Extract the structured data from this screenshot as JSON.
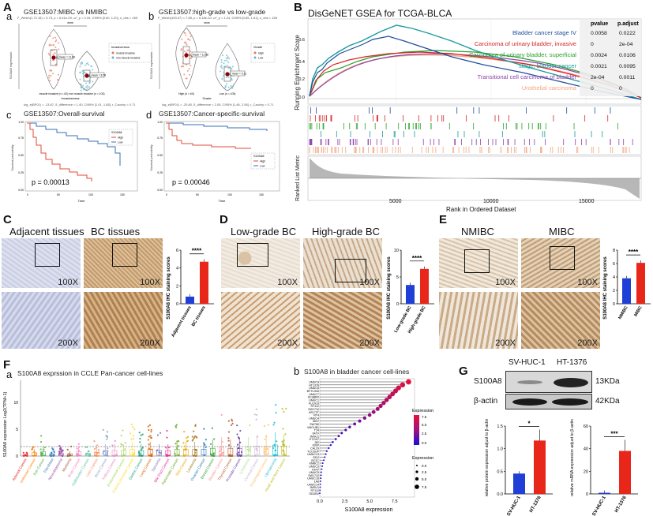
{
  "panelA": {
    "label": "A",
    "a": {
      "sub": "a",
      "title": "GSE13507:MIBC vs NMIBC",
      "stats": "F_Welch(1,72.15) = 5.73, p = 6.41e-09, ω²_p = 0.34, CI95% [0.60, 1.20], n_obs = 165",
      "ylabel": "S100A8 expression",
      "xlabel": "Invasiveness",
      "cats": [
        "muscle invasive (n = 62)",
        "non muscle invasive (n = 103)"
      ],
      "mean1": "μ_mean = 11.88",
      "mean2": "μ_mean = 8.78",
      "legend_title": "invasiveness",
      "legend_items": [
        "muscle invasive",
        "non muscle invasive"
      ],
      "footer": "log_e(BF01) = -13.87, δ_difference = 1.40, CI95% [1.01, 1.85], r_Cauchy = 0.71",
      "sig": "****"
    },
    "b": {
      "sub": "b",
      "title": "GSE13507:high-grade vs low-grade",
      "stats": "F_Welch(103.07) = 7.85, p = 6.18e-10, ω²_p = 1.24, CI95% [0.85, 1.61], n_obs = 165",
      "ylabel": "S100A8 expression",
      "xlabel": "Grade",
      "cats": [
        "High (n = 60)",
        "Low (n = 105)"
      ],
      "mean1": "μ_mean = 11.88",
      "mean2": "μ_mean = 9.11",
      "legend_title": "Grade",
      "legend_items": [
        "High",
        "Low"
      ],
      "footer": "log_e(BF01) = -20.80, δ_difference = 2.05, CI95% [1.48, 2.56], r_Cauchy = 0.71",
      "sig": "****"
    },
    "c": {
      "sub": "c",
      "title": "GSE13507:Overall-survival",
      "ylabel": "Survival probability",
      "xlabel": "Time",
      "pval": "p = 0.00013",
      "legend_title": "S100A8",
      "legend_items": [
        "High",
        "Low"
      ],
      "xticks": [
        "0",
        "50",
        "100",
        "150"
      ],
      "yticks": [
        "0.00",
        "0.25",
        "0.50",
        "0.75",
        "1.00"
      ]
    },
    "d": {
      "sub": "d",
      "title": "GSE13507:Cancer-specific-survival",
      "ylabel": "Survival probability",
      "xlabel": "Time",
      "pval": "p = 0.00046",
      "legend_title": "S100A8",
      "legend_items": [
        "High",
        "Low"
      ],
      "xticks": [
        "0",
        "50",
        "100",
        "150"
      ],
      "yticks": [
        "0.00",
        "0.25",
        "0.50",
        "0.75",
        "1.00"
      ]
    }
  },
  "panelB": {
    "label": "B",
    "title": "DisGeNET GSEA for TCGA-BLCA",
    "ylabel_top": "Running Enrichment Score",
    "ylabel_bottom": "Ranked List Metric",
    "xlabel": "Rank in Ordered Dataset",
    "xticks": [
      "5000",
      "10000",
      "15000"
    ],
    "table_headers": [
      "pvalue",
      "p.adjust"
    ],
    "terms": [
      {
        "name": "Bladder cancer stage IV",
        "color": "#1f4e9c",
        "pvalue": "0.0058",
        "padj": "0.0222"
      },
      {
        "name": "Carcinoma of urinary bladder, invasive",
        "color": "#d62728",
        "pvalue": "0",
        "padj": "2e-04"
      },
      {
        "name": "Carcinoma of urinary bladder, superficial",
        "color": "#2ca02c",
        "pvalue": "0.0024",
        "padj": "0.0106"
      },
      {
        "name": "stage, bladder cancer",
        "color": "#1a9a9a",
        "pvalue": "0.0021",
        "padj": "0.0095"
      },
      {
        "name": "Transitional cell carcinoma of bladder",
        "color": "#8e44ad",
        "pvalue": "2e-04",
        "padj": "0.0011"
      },
      {
        "name": "Urothelial carcinoma",
        "color": "#f4a582",
        "pvalue": "0",
        "padj": "0"
      }
    ]
  },
  "panelC": {
    "label": "C",
    "titles": [
      "Adjacent tissues",
      "BC tissues"
    ],
    "mag_low": "100X",
    "mag_high": "200X",
    "ylabel": "S100A8 IHC staining scores",
    "cats": [
      "Adjacent tissues",
      "BC tissues"
    ],
    "values": [
      0.8,
      4.7
    ],
    "ymax": 6,
    "yticks": [
      "0",
      "2",
      "4",
      "6"
    ],
    "sig": "****"
  },
  "panelD": {
    "label": "D",
    "titles": [
      "Low-grade BC",
      "High-grade BC"
    ],
    "mag_low": "100X",
    "mag_high": "200X",
    "ylabel": "S100A8 IHC staining scores",
    "cats": [
      "Low-grade BC",
      "High-grade BC"
    ],
    "values": [
      3.5,
      6.5
    ],
    "ymax": 10,
    "yticks": [
      "0",
      "5",
      "10"
    ],
    "sig": "****"
  },
  "panelE": {
    "label": "E",
    "titles": [
      "NMIBC",
      "MIBC"
    ],
    "mag_low": "100X",
    "mag_high": "200X",
    "ylabel": "S100A8 IHC staining scores",
    "cats": [
      "NMIBC",
      "MIBC"
    ],
    "values": [
      3.8,
      6.1
    ],
    "ymax": 8,
    "yticks": [
      "0",
      "2",
      "4",
      "6",
      "8"
    ],
    "sig": "****"
  },
  "panelF": {
    "label": "F",
    "a": {
      "sub": "a",
      "title": "S100A8 exprssion in CCLE Pan-cancer cell-lines",
      "ylabel": "S100A8 expression Log2(TPM+1)",
      "yticks": [
        "0",
        "5",
        "10"
      ],
      "cancers": [
        "Adrenal Cancer",
        "Unknown Cancer",
        "Eye Cancer",
        "Fibroblast",
        "Neuroblastoma",
        "Myeloma",
        "Brain Cancer",
        "Gallbladder Cancer",
        "Liver Cancer",
        "Bone Cancer",
        "Kidney Cancer",
        "Endometrial Cancer",
        "Colon/Colorectal Cancer",
        "Gastric Cancer",
        "Lung Cancer",
        "Sarcoma",
        "Bile Duct Cancer",
        "Pancreatic Cancer",
        "Skin Cancer",
        "Leukemia",
        "Ovarian Cancer",
        "Breast Cancer",
        "Bladder Cancer",
        "Thyroid Cancer",
        "Prostate Cancer",
        "Lymphoma",
        "Cervical Cancer",
        "Esophageal Cancer",
        "Liposarcoma",
        "Head and Neck Cancer"
      ]
    },
    "b": {
      "sub": "b",
      "title": "S100A8 in bladder cancer cell-lines",
      "xlabel": "S100A8 expression",
      "xticks": [
        "0.0",
        "2.5",
        "5.0",
        "7.5"
      ],
      "legend_title": "Expression",
      "legend_ticks": [
        "7.5",
        "5.0",
        "2.5",
        "0.0"
      ],
      "size_title": "Expression",
      "size_ticks": [
        "0.0",
        "2.5",
        "5.0",
        "7.5"
      ],
      "cells": [
        "UMUC9",
        "HT1376",
        "UMUC6",
        "BFTC905",
        "UMUC7",
        "SCaBER",
        "UMUC1",
        "KU1919",
        "RT112",
        "SW1710",
        "HS172T",
        "RT4",
        "UMUC4",
        "5637",
        "SW780",
        "VMCUB1",
        "T24",
        "647V",
        "JMSU1",
        "HT1197",
        "J82",
        "639V",
        "CAL29",
        "TCCSUP",
        "UMUC13",
        "253J",
        "BC3C",
        "KMBC2",
        "UMUC3",
        "KK47",
        "UMUC5",
        "SW1710",
        "UMUC16",
        "1A6",
        "UMUC14",
        "JMSU1",
        "RT112",
        "253JBV"
      ],
      "values": [
        8.9,
        8.3,
        7.9,
        7.6,
        7.3,
        7.0,
        6.7,
        6.4,
        6.1,
        5.8,
        5.4,
        5.0,
        4.5,
        4.0,
        3.5,
        3.0,
        2.6,
        2.2,
        1.9,
        1.6,
        1.3,
        1.1,
        0.9,
        0.7,
        0.6,
        0.5,
        0.4,
        0.3,
        0.25,
        0.2,
        0.15,
        0.12,
        0.1,
        0.08,
        0.06,
        0.04,
        0.02,
        0.0
      ]
    }
  },
  "panelG": {
    "label": "G",
    "cell_lines": [
      "SV-HUC-1",
      "HT-1376"
    ],
    "blot1_label": "S100A8",
    "blot1_kda": "13KDa",
    "blot2_label": "β-actin",
    "blot2_kda": "42KDa",
    "protein": {
      "ylabel": "relative protein expression adjust to β-actin",
      "values": [
        0.45,
        1.18
      ],
      "ymax": 1.5,
      "yticks": [
        "0.0",
        "0.5",
        "1.0",
        "1.5"
      ],
      "sig": "*"
    },
    "mrna": {
      "ylabel": "relative mRNA expression adjust to β-actin",
      "values": [
        1,
        38
      ],
      "ymax": 60,
      "yticks": [
        "0",
        "20",
        "40",
        "60"
      ],
      "sig": "***"
    }
  }
}
